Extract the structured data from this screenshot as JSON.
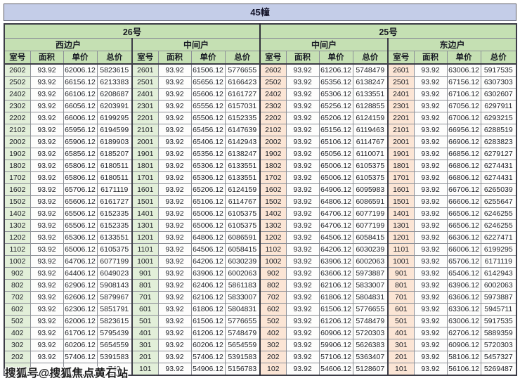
{
  "title": "45幢",
  "watermark": {
    "text": "搜狐号@搜狐焦点黄石站"
  },
  "colors": {
    "title_bar_bg": "#c4cde8",
    "green_header_bg": "#c5e0b3",
    "green_room_cell_bg": "#e2efd9",
    "orange_header_bg": "#f7cbac",
    "orange_room_cell_bg": "#fbe5d5",
    "border_dark": "#3c3c46",
    "border_light": "#8d9097"
  },
  "table": {
    "column_headers": [
      "室号",
      "面积",
      "单价",
      "总价"
    ],
    "buildings": [
      {
        "label": "26号"
      },
      {
        "label": "25号"
      }
    ],
    "groups": [
      {
        "building": "26号",
        "unit_type": "西边户",
        "theme": "green",
        "rows": [
          [
            "2602",
            "93.92",
            "62006.12",
            "5823615"
          ],
          [
            "2502",
            "93.92",
            "66156.12",
            "6213383"
          ],
          [
            "2402",
            "93.92",
            "66106.12",
            "6208687"
          ],
          [
            "2302",
            "93.92",
            "66056.12",
            "6203991"
          ],
          [
            "2202",
            "93.92",
            "66006.12",
            "6199295"
          ],
          [
            "2102",
            "93.92",
            "65956.12",
            "6194599"
          ],
          [
            "2002",
            "93.92",
            "65906.12",
            "6189903"
          ],
          [
            "1902",
            "93.92",
            "65856.12",
            "6185207"
          ],
          [
            "1802",
            "93.92",
            "65806.12",
            "6180511"
          ],
          [
            "1702",
            "93.92",
            "65806.12",
            "6180511"
          ],
          [
            "1602",
            "93.92",
            "65706.12",
            "6171119"
          ],
          [
            "1502",
            "93.92",
            "65606.12",
            "6161727"
          ],
          [
            "1402",
            "93.92",
            "65506.12",
            "6152335"
          ],
          [
            "1302",
            "93.92",
            "65506.12",
            "6152335"
          ],
          [
            "1202",
            "93.92",
            "65306.12",
            "6133551"
          ],
          [
            "1102",
            "93.92",
            "65006.12",
            "6105375"
          ],
          [
            "1002",
            "93.92",
            "64706.12",
            "6077199"
          ],
          [
            "902",
            "93.92",
            "64406.12",
            "6049023"
          ],
          [
            "802",
            "93.92",
            "62906.12",
            "5908143"
          ],
          [
            "702",
            "93.92",
            "62606.12",
            "5879967"
          ],
          [
            "602",
            "93.92",
            "62306.12",
            "5851791"
          ],
          [
            "502",
            "93.92",
            "62006.12",
            "5823615"
          ],
          [
            "402",
            "93.92",
            "61706.12",
            "5795439"
          ],
          [
            "302",
            "93.92",
            "60206.12",
            "5654559"
          ],
          [
            "202",
            "93.92",
            "57406.12",
            "5391583"
          ],
          [
            "",
            "",
            "",
            "743"
          ]
        ]
      },
      {
        "building": "26号",
        "unit_type": "中间户",
        "theme": "green",
        "rows": [
          [
            "2601",
            "93.92",
            "61506.12",
            "5776655"
          ],
          [
            "2501",
            "93.92",
            "65656.12",
            "6166423"
          ],
          [
            "2401",
            "93.92",
            "65606.12",
            "6161727"
          ],
          [
            "2301",
            "93.92",
            "65556.12",
            "6157031"
          ],
          [
            "2201",
            "93.92",
            "65506.12",
            "6152335"
          ],
          [
            "2101",
            "93.92",
            "65456.12",
            "6147639"
          ],
          [
            "2001",
            "93.92",
            "65406.12",
            "6142943"
          ],
          [
            "1901",
            "93.92",
            "65356.12",
            "6138247"
          ],
          [
            "1801",
            "93.92",
            "65306.12",
            "6133551"
          ],
          [
            "1701",
            "93.92",
            "65306.12",
            "6133551"
          ],
          [
            "1601",
            "93.92",
            "65206.12",
            "6124159"
          ],
          [
            "1501",
            "93.92",
            "65106.12",
            "6114767"
          ],
          [
            "1401",
            "93.92",
            "65006.12",
            "6105375"
          ],
          [
            "1301",
            "93.92",
            "65006.12",
            "6105375"
          ],
          [
            "1201",
            "93.92",
            "64806.12",
            "6086591"
          ],
          [
            "1101",
            "93.92",
            "64506.12",
            "6058415"
          ],
          [
            "1001",
            "93.92",
            "64206.12",
            "6030239"
          ],
          [
            "901",
            "93.92",
            "63906.12",
            "6002063"
          ],
          [
            "801",
            "93.92",
            "62406.12",
            "5861183"
          ],
          [
            "701",
            "93.92",
            "62106.12",
            "5833007"
          ],
          [
            "601",
            "93.92",
            "61806.12",
            "5804831"
          ],
          [
            "501",
            "93.92",
            "61506.12",
            "5776655"
          ],
          [
            "401",
            "93.92",
            "61206.12",
            "5748479"
          ],
          [
            "301",
            "93.92",
            "60206.12",
            "5654559"
          ],
          [
            "201",
            "93.92",
            "57406.12",
            "5391583"
          ],
          [
            "101",
            "93.92",
            "54906.12",
            "5156783"
          ]
        ]
      },
      {
        "building": "25号",
        "unit_type": "中间户",
        "theme": "orange",
        "rows": [
          [
            "2602",
            "93.92",
            "61206.12",
            "5748479"
          ],
          [
            "2502",
            "93.92",
            "65356.12",
            "6138247"
          ],
          [
            "2402",
            "93.92",
            "65306.12",
            "6133551"
          ],
          [
            "2302",
            "93.92",
            "65256.12",
            "6128855"
          ],
          [
            "2202",
            "93.92",
            "65206.12",
            "6124159"
          ],
          [
            "2102",
            "93.92",
            "65156.12",
            "6119463"
          ],
          [
            "2002",
            "93.92",
            "65106.12",
            "6114767"
          ],
          [
            "1902",
            "93.92",
            "65056.12",
            "6110071"
          ],
          [
            "1802",
            "93.92",
            "65006.12",
            "6105375"
          ],
          [
            "1702",
            "93.92",
            "65006.12",
            "6105375"
          ],
          [
            "1602",
            "93.92",
            "64906.12",
            "6095983"
          ],
          [
            "1502",
            "93.92",
            "64806.12",
            "6086591"
          ],
          [
            "1402",
            "93.92",
            "64706.12",
            "6077199"
          ],
          [
            "1302",
            "93.92",
            "64706.12",
            "6077199"
          ],
          [
            "1202",
            "93.92",
            "64506.12",
            "6058415"
          ],
          [
            "1102",
            "93.92",
            "64206.12",
            "6030239"
          ],
          [
            "1002",
            "93.92",
            "63906.12",
            "6002063"
          ],
          [
            "902",
            "93.92",
            "63606.12",
            "5973887"
          ],
          [
            "802",
            "93.92",
            "62106.12",
            "5833007"
          ],
          [
            "702",
            "93.92",
            "61806.12",
            "5804831"
          ],
          [
            "602",
            "93.92",
            "61506.12",
            "5776655"
          ],
          [
            "502",
            "93.92",
            "61206.12",
            "5748479"
          ],
          [
            "402",
            "93.92",
            "60906.12",
            "5720303"
          ],
          [
            "302",
            "93.92",
            "59906.12",
            "5626383"
          ],
          [
            "202",
            "93.92",
            "57106.12",
            "5363407"
          ],
          [
            "102",
            "93.92",
            "54606.12",
            "5128607"
          ]
        ]
      },
      {
        "building": "25号",
        "unit_type": "东边户",
        "theme": "orange",
        "rows": [
          [
            "2601",
            "93.92",
            "63006.12",
            "5917535"
          ],
          [
            "2501",
            "93.92",
            "67156.12",
            "6307303"
          ],
          [
            "2401",
            "93.92",
            "67106.12",
            "6302607"
          ],
          [
            "2301",
            "93.92",
            "67056.12",
            "6297911"
          ],
          [
            "2201",
            "93.92",
            "67006.12",
            "6293215"
          ],
          [
            "2101",
            "93.92",
            "66956.12",
            "6288519"
          ],
          [
            "2001",
            "93.92",
            "66906.12",
            "6283823"
          ],
          [
            "1901",
            "93.92",
            "66856.12",
            "6279127"
          ],
          [
            "1801",
            "93.92",
            "66806.12",
            "6274431"
          ],
          [
            "1701",
            "93.92",
            "66806.12",
            "6274431"
          ],
          [
            "1601",
            "93.92",
            "66706.12",
            "6265039"
          ],
          [
            "1501",
            "93.92",
            "66606.12",
            "6255647"
          ],
          [
            "1401",
            "93.92",
            "66506.12",
            "6246255"
          ],
          [
            "1301",
            "93.92",
            "66506.12",
            "6246255"
          ],
          [
            "1201",
            "93.92",
            "66306.12",
            "6227471"
          ],
          [
            "1101",
            "93.92",
            "66006.12",
            "6199295"
          ],
          [
            "1001",
            "93.92",
            "65706.12",
            "6171119"
          ],
          [
            "901",
            "93.92",
            "65406.12",
            "6142943"
          ],
          [
            "801",
            "93.92",
            "63906.12",
            "6002063"
          ],
          [
            "701",
            "93.92",
            "63606.12",
            "5973887"
          ],
          [
            "601",
            "93.92",
            "63306.12",
            "5945711"
          ],
          [
            "501",
            "93.92",
            "63006.12",
            "5917535"
          ],
          [
            "401",
            "93.92",
            "62706.12",
            "5889359"
          ],
          [
            "301",
            "93.92",
            "60906.12",
            "5720303"
          ],
          [
            "201",
            "93.92",
            "58106.12",
            "5457327"
          ],
          [
            "101",
            "93.92",
            "56106.12",
            "5269487"
          ]
        ]
      }
    ]
  }
}
